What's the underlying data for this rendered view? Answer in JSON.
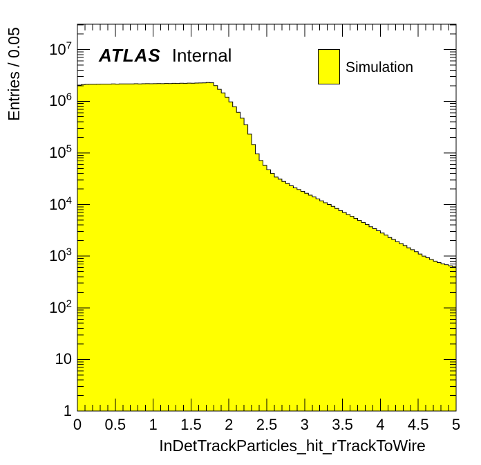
{
  "figure": {
    "annotations": {
      "experiment": "ATLAS",
      "status": "Internal"
    },
    "legend": {
      "position": "top-right",
      "entries": [
        {
          "label": "Simulation",
          "fill": "#FFFF00",
          "border": "#000000"
        }
      ]
    }
  },
  "axes": {
    "x": {
      "title": "InDetTrackParticles_hit_rTrackToWire",
      "min": 0,
      "max": 5,
      "minor_step": 0.1,
      "major_ticks": [
        {
          "v": 0,
          "label": "0"
        },
        {
          "v": 0.5,
          "label": "0.5"
        },
        {
          "v": 1,
          "label": "1"
        },
        {
          "v": 1.5,
          "label": "1.5"
        },
        {
          "v": 2,
          "label": "2"
        },
        {
          "v": 2.5,
          "label": "2.5"
        },
        {
          "v": 3,
          "label": "3"
        },
        {
          "v": 3.5,
          "label": "3.5"
        },
        {
          "v": 4,
          "label": "4"
        },
        {
          "v": 4.5,
          "label": "4.5"
        },
        {
          "v": 5,
          "label": "5"
        }
      ]
    },
    "y": {
      "title": "Entries / 0.05",
      "scale": "log",
      "min": 1,
      "max": 31000000,
      "major_ticks": [
        {
          "v": 1,
          "base": "1",
          "exp": ""
        },
        {
          "v": 10,
          "base": "10",
          "exp": ""
        },
        {
          "v": 100,
          "base": "10",
          "exp": "2"
        },
        {
          "v": 1000,
          "base": "10",
          "exp": "3"
        },
        {
          "v": 10000,
          "base": "10",
          "exp": "4"
        },
        {
          "v": 100000,
          "base": "10",
          "exp": "5"
        },
        {
          "v": 1000000,
          "base": "10",
          "exp": "6"
        },
        {
          "v": 10000000,
          "base": "10",
          "exp": "7"
        }
      ]
    }
  },
  "chart_data": {
    "type": "bar",
    "subtype": "histogram",
    "title": "",
    "xlabel": "InDetTrackParticles_hit_rTrackToWire",
    "ylabel": "Entries / 0.05",
    "x_range": [
      0,
      5
    ],
    "ylim": [
      1,
      31000000
    ],
    "yscale": "log",
    "grid": false,
    "bin_width": 0.05,
    "legend_position": "top-right",
    "series": [
      {
        "name": "Simulation",
        "fill_color": "#FFFF00",
        "line_color": "#000000",
        "bins": [
          2050000.0,
          2100000.0,
          2120000.0,
          2130000.0,
          2130000.0,
          2140000.0,
          2150000.0,
          2150000.0,
          2150000.0,
          2160000.0,
          2150000.0,
          2160000.0,
          2170000.0,
          2160000.0,
          2170000.0,
          2180000.0,
          2170000.0,
          2180000.0,
          2190000.0,
          2180000.0,
          2190000.0,
          2200000.0,
          2190000.0,
          2210000.0,
          2200000.0,
          2220000.0,
          2210000.0,
          2230000.0,
          2220000.0,
          2240000.0,
          2230000.0,
          2250000.0,
          2260000.0,
          2270000.0,
          2300000.0,
          2280000.0,
          2000000.0,
          1700000.0,
          1450000.0,
          1200000.0,
          970000.0,
          780000.0,
          610000.0,
          470000.0,
          350000.0,
          230000.0,
          145000.0,
          96000.0,
          71000.0,
          57000.0,
          47000.0,
          40000.0,
          34000.0,
          31000.0,
          28000.0,
          25500.0,
          23000.0,
          21000.0,
          19500.0,
          18000.0,
          16500.0,
          15200.0,
          14000.0,
          12800.0,
          11800.0,
          10800.0,
          10000.0,
          9200.0,
          8400.0,
          7600.0,
          7000.0,
          6400.0,
          5900.0,
          5400.0,
          4900.0,
          4500.0,
          4100.0,
          3700.0,
          3400.0,
          3100.0,
          2800.0,
          2550.0,
          2300.0,
          2100.0,
          1900.0,
          1750.0,
          1600.0,
          1450.0,
          1330.0,
          1220.0,
          1100.0,
          1000.0,
          930.0,
          860.0,
          800.0,
          750.0,
          710.0,
          680.0,
          650.0,
          630.0
        ]
      }
    ]
  }
}
